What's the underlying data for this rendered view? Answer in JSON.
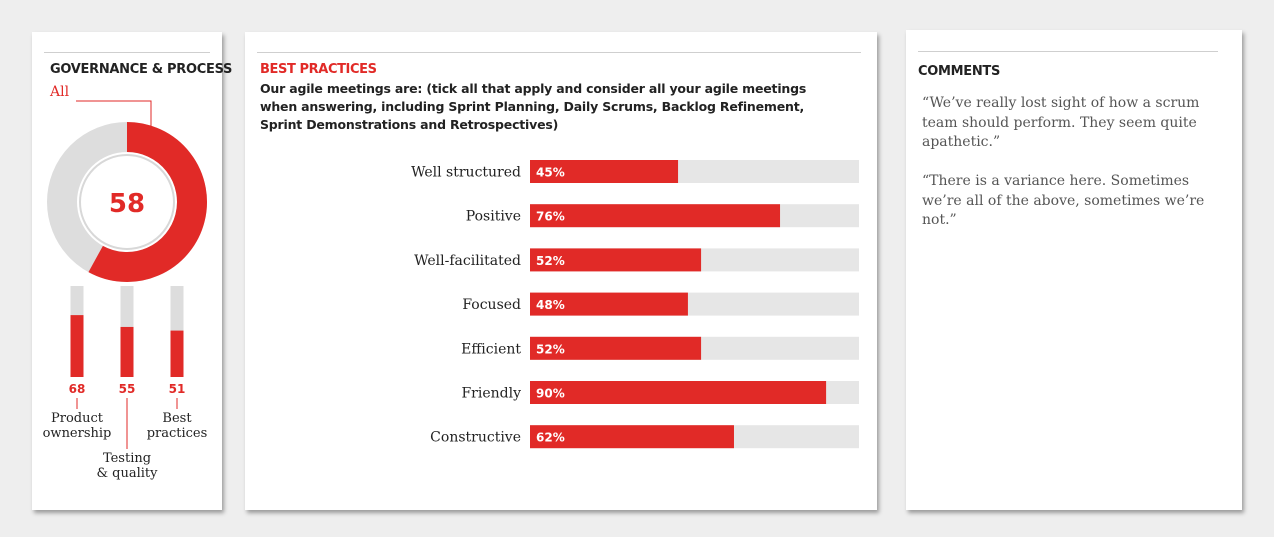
{
  "governance": {
    "title": "GOVERNANCE & PROCESS",
    "subtitle": "All",
    "score": 58,
    "score_max": 100,
    "accent": "#e12a27",
    "track": "#dddddd"
  },
  "best_practices": {
    "title": "BEST PRACTICES",
    "question": "Our agile meetings are: (tick all that apply and consider all your agile meetings when answering, including Sprint Planning, Daily Scrums, Backlog Refinement, Sprint Demonstrations and Retrospectives)"
  },
  "comments": {
    "title": "COMMENTS",
    "items": [
      "“We’ve really lost sight of how a scrum team should perform. They seem quite apathetic.”",
      "“There is a variance here. Sometimes we’re all of the above, sometimes we’re not.”"
    ]
  },
  "chart_data": [
    {
      "type": "pie",
      "title": "GOVERNANCE & PROCESS",
      "subtitle": "All",
      "values": [
        58,
        42
      ],
      "center_label": "58",
      "colors": [
        "#e12a27",
        "#dddddd"
      ]
    },
    {
      "type": "bar",
      "orientation": "vertical",
      "categories": [
        "Product ownership",
        "Testing & quality",
        "Best practices"
      ],
      "category_lines": [
        [
          "Product",
          "ownership"
        ],
        [
          "Testing",
          "& quality"
        ],
        [
          "Best",
          "practices"
        ]
      ],
      "values": [
        68,
        55,
        51
      ],
      "ylim": [
        0,
        100
      ],
      "colors": [
        "#e12a27",
        "#dddddd"
      ]
    },
    {
      "type": "bar",
      "orientation": "horizontal",
      "title": "BEST PRACTICES",
      "categories": [
        "Well structured",
        "Positive",
        "Well-facilitated",
        "Focused",
        "Efficient",
        "Friendly",
        "Constructive"
      ],
      "values": [
        45,
        76,
        52,
        48,
        52,
        90,
        62
      ],
      "value_suffix": "%",
      "xlim": [
        0,
        100
      ],
      "colors": [
        "#e12a27",
        "#e6e6e6"
      ]
    }
  ]
}
